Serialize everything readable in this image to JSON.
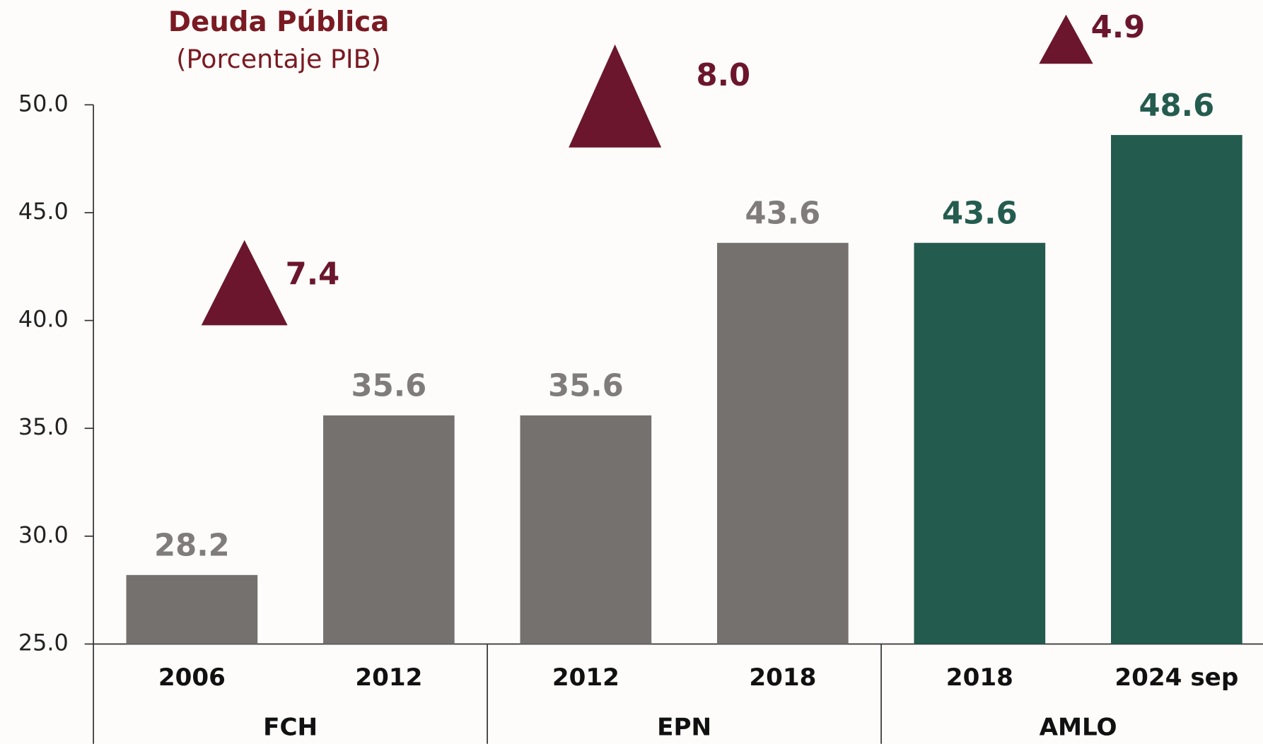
{
  "chart_data": {
    "type": "bar",
    "title": "Deuda Pública",
    "subtitle": "(Porcentaje PIB)",
    "categories": [
      "2006",
      "2012",
      "2012",
      "2018",
      "2018",
      "2024 sep"
    ],
    "groups": [
      "FCH",
      "EPN",
      "AMLO"
    ],
    "values": [
      28.2,
      35.6,
      35.6,
      43.6,
      43.6,
      48.6
    ],
    "colors": [
      "#75716f",
      "#75716f",
      "#75716f",
      "#75716f",
      "#235b4e",
      "#235b4e"
    ],
    "label_colors": [
      "#807c7b",
      "#807c7b",
      "#807c7b",
      "#807c7b",
      "#245c4f",
      "#245c4f"
    ],
    "annotations": [
      "7.4",
      "8.0",
      "4.9"
    ],
    "annotation_color": "#6b162c",
    "ylim": [
      25,
      50
    ],
    "yticks": [
      {
        "value": 25,
        "label": "25.0"
      },
      {
        "value": 30,
        "label": "30.0"
      },
      {
        "value": 35,
        "label": "35.0"
      },
      {
        "value": 40,
        "label": "40.0"
      },
      {
        "value": 45,
        "label": "45.0"
      },
      {
        "value": 50,
        "label": "50.0"
      }
    ]
  }
}
